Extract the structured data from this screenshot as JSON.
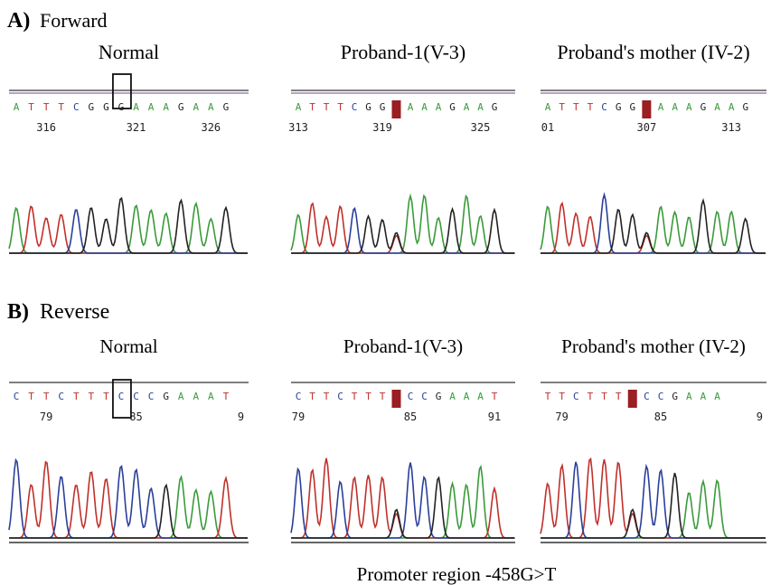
{
  "sections": [
    {
      "label": "A)",
      "title": "Forward",
      "panels": [
        {
          "title": "Normal",
          "bases": [
            "A",
            "T",
            "T",
            "T",
            "C",
            "G",
            "G",
            "G",
            "A",
            "A",
            "A",
            "G",
            "A",
            "A",
            "G"
          ],
          "positions": [
            "316",
            "321",
            "326"
          ]
        },
        {
          "title": "Proband-1(V-3)",
          "bases": [
            "A",
            "T",
            "T",
            "T",
            "C",
            "G",
            "G",
            "A",
            "A",
            "A",
            "G",
            "A",
            "A",
            "G"
          ],
          "positions": [
            "313",
            "319",
            "325"
          ]
        },
        {
          "title": "Proband's mother (IV-2)",
          "bases": [
            "A",
            "T",
            "T",
            "T",
            "C",
            "G",
            "G",
            "A",
            "A",
            "A",
            "G",
            "A",
            "A",
            "G"
          ],
          "positions": [
            "01",
            "307",
            "313"
          ]
        }
      ]
    },
    {
      "label": "B)",
      "title": "Reverse",
      "panels": [
        {
          "title": "Normal",
          "bases": [
            "C",
            "T",
            "T",
            "C",
            "T",
            "T",
            "T",
            "C",
            "C",
            "C",
            "G",
            "A",
            "A",
            "A",
            "T"
          ],
          "positions": [
            "79",
            "85",
            "9"
          ]
        },
        {
          "title": "Proband-1(V-3)",
          "bases": [
            "C",
            "T",
            "T",
            "C",
            "T",
            "T",
            "T",
            "C",
            "C",
            "G",
            "A",
            "A",
            "A",
            "T"
          ],
          "positions": [
            "79",
            "85",
            "91"
          ]
        },
        {
          "title": "Proband's mother (IV-2)",
          "bases": [
            "T",
            "T",
            "C",
            "T",
            "T",
            "T",
            "C",
            "C",
            "G",
            "A",
            "A",
            "A"
          ],
          "positions": [
            "79",
            "85",
            "9"
          ]
        }
      ]
    }
  ],
  "caption": "Promoter region -458G>T"
}
